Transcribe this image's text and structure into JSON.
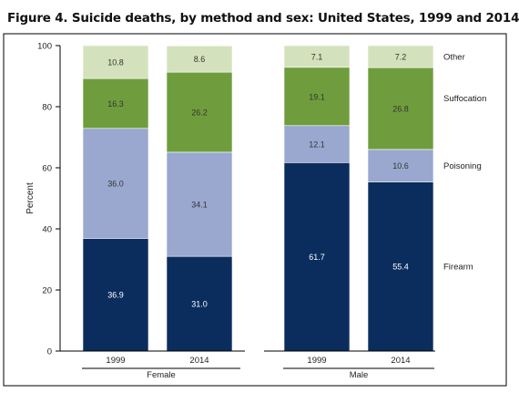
{
  "figure_title": "Figure 4. Suicide deaths, by method and sex: United States, 1999 and 2014",
  "colors": {
    "Firearm": "#0b2d5e",
    "Poisoning": "#9aa8cf",
    "Suffocation": "#6f9d3d",
    "Other": "#d3e2bd",
    "segment_text_dark": "#333333",
    "segment_text_light": "#ffffff"
  },
  "chart_data": {
    "type": "bar",
    "stacked": true,
    "title": "Figure 4. Suicide deaths, by method and sex: United States, 1999 and 2014",
    "ylabel": "Percent",
    "ylim": [
      0,
      100
    ],
    "yticks": [
      0,
      20,
      40,
      60,
      80,
      100
    ],
    "groups": [
      "Female",
      "Female",
      "Male",
      "Male"
    ],
    "group_labels": [
      "Female",
      "Male"
    ],
    "categories": [
      "1999",
      "2014",
      "1999",
      "2014"
    ],
    "series": [
      {
        "name": "Firearm",
        "values": [
          36.9,
          31.0,
          61.7,
          55.4
        ]
      },
      {
        "name": "Poisoning",
        "values": [
          36.0,
          34.1,
          12.1,
          10.6
        ]
      },
      {
        "name": "Suffocation",
        "values": [
          16.3,
          26.2,
          19.1,
          26.8
        ]
      },
      {
        "name": "Other",
        "values": [
          10.8,
          8.6,
          7.1,
          7.2
        ]
      }
    ],
    "data_labels": [
      [
        "36.9",
        "31.0",
        "61.7",
        "55.4"
      ],
      [
        "36.0",
        "34.1",
        "12.1",
        "10.6"
      ],
      [
        "16.3",
        "26.2",
        "19.1",
        "26.8"
      ],
      [
        "10.8",
        "8.6",
        "7.1",
        "7.2"
      ]
    ],
    "legend": "direct-labels-right",
    "grid": false
  }
}
